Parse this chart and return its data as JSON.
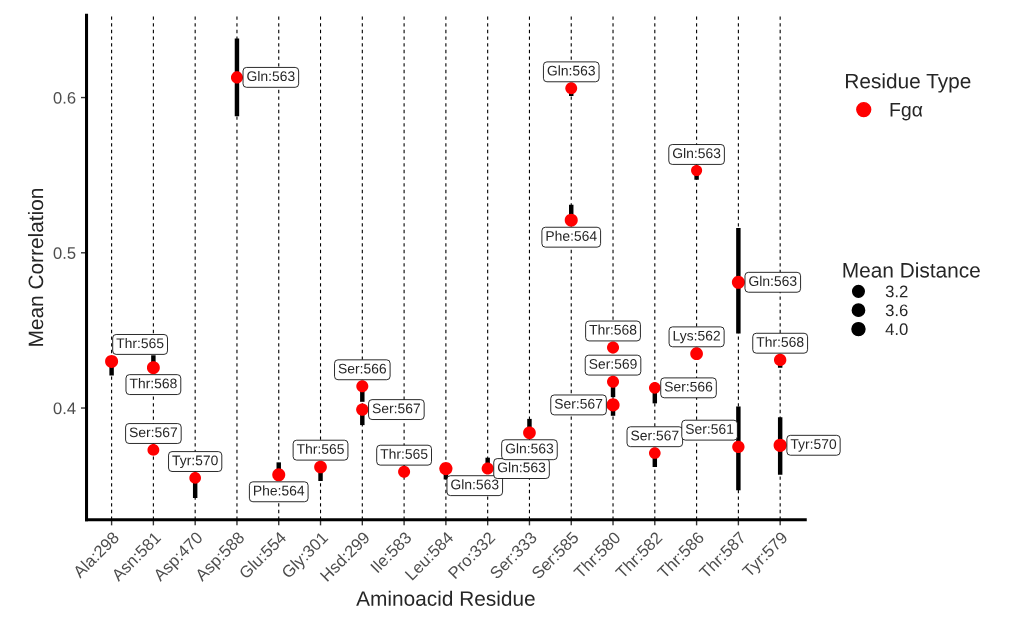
{
  "chart_data": {
    "type": "bubble",
    "xlabel": "Aminoacid Residue",
    "ylabel": "Mean Correlation",
    "legend_title": [
      "Residue Type",
      "Mean Distance"
    ],
    "legend": "right",
    "grid": "x",
    "marker": "circle",
    "categories": [
      "Ala:298",
      "Asn:581",
      "Asp:470",
      "Asp:588",
      "Glu:554",
      "Gly:301",
      "Hsd:299",
      "Ile:583",
      "Leu:584",
      "Pro:332",
      "Ser:333",
      "Ser:585",
      "Thr:580",
      "Thr:582",
      "Thr:586",
      "Thr:587",
      "Tyr:579"
    ],
    "ylim": [
      0.328,
      0.653
    ],
    "yticks": [
      0.4,
      0.5,
      0.6
    ],
    "size_legend": [
      3.2,
      3.6,
      {
        "value": 4,
        "label": "4.0"
      }
    ],
    "series": [
      {
        "name": "Fgα",
        "color": "#ff0000",
        "x": [
          "Ala:298",
          "Asn:581",
          "Asn:581",
          "Asp:470",
          "Asp:588",
          "Glu:554",
          "Gly:301",
          "Hsd:299",
          "Hsd:299",
          "Ile:583",
          "Leu:584",
          "Pro:332",
          "Ser:333",
          "Ser:585",
          "Ser:585",
          "Thr:580",
          "Thr:580",
          "Thr:580",
          "Thr:582",
          "Thr:582",
          "Thr:586",
          "Thr:586",
          "Thr:587",
          "Thr:587",
          "Tyr:579",
          "Tyr:579"
        ],
        "values": [
          0.43,
          0.426,
          0.373,
          0.355,
          0.613,
          0.357,
          0.362,
          0.414,
          0.399,
          0.359,
          0.361,
          0.361,
          0.384,
          0.606,
          0.521,
          0.439,
          0.417,
          0.402,
          0.413,
          0.371,
          0.435,
          0.553,
          0.481,
          0.375,
          0.431,
          0.376
        ],
        "sizes": [
          4.0,
          3.9,
          3.3,
          3.2,
          3.4,
          4.0,
          3.8,
          3.4,
          3.6,
          3.4,
          4.1,
          3.4,
          3.8,
          3.3,
          4.0,
          3.4,
          3.4,
          4.1,
          3.2,
          3.2,
          3.8,
          2.9,
          4.0,
          3.6,
          3.6,
          4.1
        ],
        "errors": [
          [
            0.421,
            0.43
          ],
          [
            0.426,
            0.434
          ],
          null,
          [
            0.342,
            0.355
          ],
          [
            0.588,
            0.638
          ],
          [
            0.357,
            0.365
          ],
          [
            0.353,
            0.362
          ],
          [
            0.404,
            0.414
          ],
          [
            0.389,
            0.399
          ],
          [
            0.359,
            0.362
          ],
          [
            0.354,
            0.361
          ],
          [
            0.361,
            0.368
          ],
          [
            0.384,
            0.393
          ],
          [
            0.601,
            0.606
          ],
          [
            0.521,
            0.531
          ],
          null,
          [
            0.407,
            0.417
          ],
          [
            0.395,
            0.402
          ],
          [
            0.403,
            0.413
          ],
          [
            0.362,
            0.371
          ],
          null,
          [
            0.547,
            0.556
          ],
          [
            0.448,
            0.516
          ],
          [
            0.347,
            0.401
          ],
          [
            0.426,
            0.431
          ],
          [
            0.357,
            0.394
          ]
        ]
      }
    ],
    "annotations": [
      {
        "text": "Thr:565",
        "x": "Ala:298",
        "y": 0.43
      },
      {
        "text": "Thr:568",
        "x": "Asn:581",
        "y": 0.426
      },
      {
        "text": "Ser:567",
        "x": "Asn:581",
        "y": 0.373
      },
      {
        "text": "Tyr:570",
        "x": "Asp:470",
        "y": 0.355
      },
      {
        "text": "Gln:563",
        "x": "Asp:588",
        "y": 0.613
      },
      {
        "text": "Phe:564",
        "x": "Glu:554",
        "y": 0.357
      },
      {
        "text": "Thr:565",
        "x": "Gly:301",
        "y": 0.362
      },
      {
        "text": "Ser:566",
        "x": "Hsd:299",
        "y": 0.414
      },
      {
        "text": "Ser:567",
        "x": "Hsd:299",
        "y": 0.399
      },
      {
        "text": "Thr:565",
        "x": "Ile:583",
        "y": 0.359
      },
      {
        "text": "Gln:563",
        "x": "Leu:584",
        "y": 0.361
      },
      {
        "text": "Gln:563",
        "x": "Pro:332",
        "y": 0.361
      },
      {
        "text": "Gln:563",
        "x": "Ser:333",
        "y": 0.384
      },
      {
        "text": "Gln:563",
        "x": "Ser:585",
        "y": 0.606
      },
      {
        "text": "Phe:564",
        "x": "Ser:585",
        "y": 0.521
      },
      {
        "text": "Thr:568",
        "x": "Thr:580",
        "y": 0.439
      },
      {
        "text": "Ser:569",
        "x": "Thr:580",
        "y": 0.417
      },
      {
        "text": "Ser:567",
        "x": "Thr:580",
        "y": 0.402
      },
      {
        "text": "Ser:566",
        "x": "Thr:582",
        "y": 0.413
      },
      {
        "text": "Ser:567",
        "x": "Thr:582",
        "y": 0.371
      },
      {
        "text": "Lys:562",
        "x": "Thr:586",
        "y": 0.435
      },
      {
        "text": "Gln:563",
        "x": "Thr:586",
        "y": 0.553
      },
      {
        "text": "Gln:563",
        "x": "Thr:587",
        "y": 0.481
      },
      {
        "text": "Ser:561",
        "x": "Thr:587",
        "y": 0.375
      },
      {
        "text": "Thr:568",
        "x": "Tyr:579",
        "y": 0.431
      },
      {
        "text": "Tyr:570",
        "x": "Tyr:579",
        "y": 0.376
      }
    ]
  }
}
